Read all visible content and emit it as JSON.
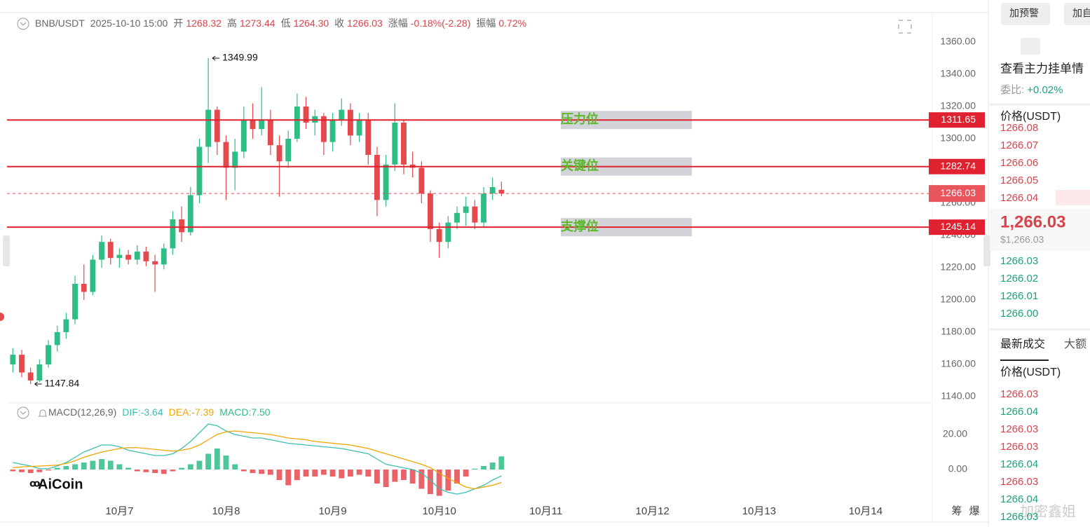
{
  "header": {
    "symbol": "BNB/USDT",
    "time": "2025-10-10 15:00",
    "items": [
      {
        "label": "开",
        "value": "1268.32"
      },
      {
        "label": "高",
        "value": "1273.44"
      },
      {
        "label": "低",
        "value": "1264.30"
      },
      {
        "label": "收",
        "value": "1266.03"
      },
      {
        "label": "涨幅",
        "value": "-0.18%(-2.28)"
      },
      {
        "label": "振幅",
        "value": "0.72%"
      }
    ]
  },
  "chart_data": [
    {
      "type": "candlestick",
      "up_color": "#2ebd85",
      "down_color": "#e5484d",
      "open": [
        1160,
        1166,
        1155,
        1150,
        1160,
        1172,
        1180,
        1188,
        1210,
        1205,
        1225,
        1236,
        1226,
        1228,
        1225,
        1230,
        1224,
        1222,
        1232,
        1250,
        1242,
        1265,
        1295,
        1318,
        1298,
        1282,
        1292,
        1312,
        1306,
        1312,
        1296,
        1286,
        1300,
        1320,
        1310,
        1314,
        1298,
        1312,
        1318,
        1302,
        1312,
        1290,
        1262,
        1284,
        1310,
        1284,
        1282,
        1266,
        1244,
        1236,
        1248,
        1254,
        1258,
        1248,
        1266,
        1268.32
      ],
      "high": [
        1170,
        1169,
        1158,
        1163,
        1175,
        1184,
        1192,
        1215,
        1222,
        1228,
        1240,
        1238,
        1232,
        1231,
        1234,
        1233,
        1228,
        1235,
        1255,
        1258,
        1270,
        1300,
        1349.99,
        1320,
        1302,
        1300,
        1320,
        1322,
        1332,
        1318,
        1302,
        1305,
        1328,
        1326,
        1318,
        1316,
        1316,
        1325,
        1322,
        1316,
        1316,
        1295,
        1290,
        1322,
        1312,
        1292,
        1286,
        1268,
        1248,
        1252,
        1258,
        1264,
        1262,
        1270,
        1276,
        1273.44
      ],
      "low": [
        1155,
        1152,
        1147.84,
        1149,
        1158,
        1168,
        1176,
        1185,
        1200,
        1203,
        1220,
        1222,
        1220,
        1222,
        1222,
        1221,
        1205,
        1219,
        1228,
        1236,
        1240,
        1260,
        1285,
        1290,
        1262,
        1268,
        1288,
        1300,
        1302,
        1290,
        1264,
        1282,
        1298,
        1306,
        1302,
        1290,
        1292,
        1308,
        1296,
        1298,
        1284,
        1252,
        1258,
        1280,
        1278,
        1276,
        1260,
        1236,
        1226,
        1232,
        1244,
        1246,
        1244,
        1245,
        1262,
        1264.3
      ],
      "close": [
        1166,
        1155,
        1150,
        1160,
        1172,
        1180,
        1188,
        1210,
        1205,
        1225,
        1236,
        1226,
        1228,
        1225,
        1230,
        1224,
        1222,
        1232,
        1250,
        1242,
        1265,
        1295,
        1318,
        1298,
        1282,
        1292,
        1312,
        1306,
        1312,
        1296,
        1286,
        1300,
        1320,
        1310,
        1314,
        1298,
        1312,
        1318,
        1302,
        1312,
        1290,
        1262,
        1284,
        1310,
        1284,
        1282,
        1266,
        1244,
        1236,
        1248,
        1254,
        1258,
        1248,
        1266,
        1270,
        1266.03
      ],
      "xlim": [
        -0.5,
        103.5
      ],
      "xticks": [
        {
          "value": 12,
          "label": "10月7"
        },
        {
          "value": 24,
          "label": "10月8"
        },
        {
          "value": 36,
          "label": "10月9"
        },
        {
          "value": 48,
          "label": "10月10"
        },
        {
          "value": 60,
          "label": "10月11"
        },
        {
          "value": 72,
          "label": "10月12"
        },
        {
          "value": 84,
          "label": "10月13"
        },
        {
          "value": 96,
          "label": "10月14"
        }
      ],
      "ylim": [
        1140,
        1360
      ],
      "yticks": [
        {
          "value": 1140,
          "label": "1140.00"
        },
        {
          "value": 1160,
          "label": "1160.00"
        },
        {
          "value": 1180,
          "label": "1180.00"
        },
        {
          "value": 1200,
          "label": "1200.00"
        },
        {
          "value": 1220,
          "label": "1220.00"
        },
        {
          "value": 1240,
          "label": "1240.00"
        },
        {
          "value": 1260,
          "label": "1260.00"
        },
        {
          "value": 1280,
          "label": "1280.00"
        },
        {
          "value": 1300,
          "label": "1300.00"
        },
        {
          "value": 1320,
          "label": "1320.00"
        },
        {
          "value": 1340,
          "label": "1340.00"
        },
        {
          "value": 1360,
          "label": "1360.00"
        }
      ],
      "grid": false,
      "levels": [
        {
          "value": 1311.65,
          "label": "压力位"
        },
        {
          "value": 1282.74,
          "label": "关键位"
        },
        {
          "value": 1245.14,
          "label": "支撑位"
        }
      ],
      "level_color": "#e0212f",
      "level_label_color": "#5cb82c",
      "last": 1266.03
    },
    {
      "type": "macd",
      "title": "MACD(12,26,9)",
      "ylim": [
        -16,
        28
      ],
      "yticks": [
        {
          "value": 0,
          "label": "0.00"
        },
        {
          "value": 20,
          "label": "20.00"
        }
      ],
      "series": [
        {
          "name": "DIF:-3.64",
          "color": "#3cbfb0",
          "values": [
            4,
            3,
            2,
            0.5,
            0.5,
            2,
            4,
            7,
            10,
            12,
            14,
            14,
            13,
            11,
            10,
            9,
            8,
            8,
            9,
            12,
            16,
            21,
            26,
            25,
            22,
            20,
            19,
            18,
            18,
            17,
            16,
            15,
            14.5,
            14,
            13.5,
            13,
            12.5,
            12,
            11,
            10,
            9,
            6,
            3,
            2,
            1,
            0,
            -2,
            -6,
            -11,
            -13,
            -14,
            -13,
            -11,
            -9,
            -6,
            -3.64
          ]
        },
        {
          "name": "DEA:-7.39",
          "color": "#f0a500",
          "values": [
            1,
            1.5,
            1.8,
            2,
            2.2,
            2.5,
            3.5,
            5,
            7,
            8.5,
            10,
            11,
            12,
            12.5,
            12.5,
            12,
            11.5,
            11,
            10.5,
            11,
            12,
            14,
            17,
            20,
            21.5,
            22,
            21.5,
            21,
            20.5,
            20,
            19,
            18,
            17.5,
            17,
            16,
            15.5,
            15,
            14.5,
            14,
            13,
            12,
            10.5,
            9,
            7.5,
            6,
            4.5,
            3,
            1,
            -2,
            -5,
            -7.5,
            -10,
            -11,
            -10,
            -9,
            -7.39
          ]
        },
        {
          "name": "MACD:7.50",
          "color": "#2ebd85",
          "negative_color": "#e5484d",
          "values": [
            -1,
            -1.5,
            -2,
            -1.5,
            -0.5,
            1,
            2,
            3,
            4,
            5,
            6,
            5,
            3,
            1,
            -1,
            -1.5,
            -2,
            -2.5,
            -1,
            1,
            3,
            5,
            9,
            12,
            8,
            3,
            -1,
            -2,
            -2.5,
            -3,
            -6,
            -9,
            -6,
            -4,
            -4,
            -3,
            -4,
            -5,
            -4,
            -3,
            -4,
            -8,
            -10,
            -7,
            -6,
            -8,
            -11,
            -14,
            -15,
            -12,
            -8,
            -4,
            0.5,
            2,
            4,
            7.5
          ]
        }
      ]
    }
  ],
  "logo": "AiCoin",
  "side_panel": {
    "buttons": [
      "加预警",
      "加自"
    ],
    "depth_link": "查看主力挂单情",
    "ratio_label": "委比:",
    "ratio": "+0.02%",
    "price_header": "价格(USDT)",
    "asks": [
      "1266.08",
      "1266.07",
      "1266.06",
      "1266.05",
      "1266.04"
    ],
    "price": "1,266.03",
    "price_usd": "$1,266.03",
    "bids": [
      "1266.03",
      "1266.02",
      "1266.01",
      "1266.00"
    ],
    "tabs": [
      "最新成交",
      "大额"
    ],
    "trades_header": "价格(USDT)",
    "trades": [
      {
        "price": "1266.03",
        "side": "sell"
      },
      {
        "price": "1266.04",
        "side": "buy"
      },
      {
        "price": "1266.03",
        "side": "sell"
      },
      {
        "price": "1266.03",
        "side": "sell"
      },
      {
        "price": "1266.04",
        "side": "buy"
      },
      {
        "price": "1266.03",
        "side": "sell"
      },
      {
        "price": "1266.04",
        "side": "buy"
      },
      {
        "price": "1266.03",
        "side": "buy"
      }
    ],
    "sell_color": "#d9434c",
    "buy_color": "#1aa37a"
  },
  "footer": {
    "tabs": [
      "筹",
      "爆"
    ]
  },
  "watermark": "加密鑫姐"
}
